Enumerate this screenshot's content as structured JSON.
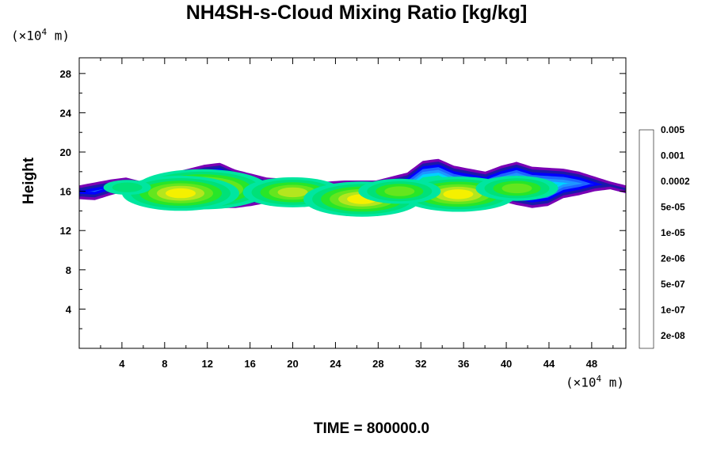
{
  "chart_data": {
    "type": "heatmap",
    "title": "NH4SH-s-Cloud Mixing Ratio [kg/kg]",
    "ylabel": "Height",
    "xlabel": "",
    "y_unit_base": "(×10",
    "y_unit_exp": "4",
    "y_unit_tail": " m)",
    "x_unit_base": "(×10",
    "x_unit_exp": "4",
    "x_unit_tail": " m)",
    "footer": "TIME = 800000.0",
    "xlim": [
      0,
      51.2
    ],
    "ylim": [
      0,
      29.6
    ],
    "x_ticks": [
      4,
      8,
      12,
      16,
      20,
      24,
      28,
      32,
      36,
      40,
      44,
      48
    ],
    "y_ticks": [
      4,
      8,
      12,
      16,
      20,
      24,
      28
    ],
    "colorbar": {
      "levels": [
        "2e-08",
        "1e-07",
        "5e-07",
        "2e-06",
        "1e-05",
        "5e-05",
        "0.0002",
        "0.001",
        "0.005"
      ],
      "colors": [
        "#7a00b4",
        "#1a1aa8",
        "#0000ff",
        "#1e64ff",
        "#1e96ff",
        "#00d2ff",
        "#00e6a0",
        "#00e178",
        "#28e628",
        "#64e61e",
        "#b4e61e",
        "#f5f000",
        "#ffb400",
        "#ff6400",
        "#ff0000",
        "#ff4040",
        "#ff9696"
      ]
    },
    "layer": {
      "bottom": [
        15.2,
        15.1,
        15.6,
        16.0,
        15.9,
        15.2,
        14.9,
        14.7,
        14.4,
        14.3,
        14.3,
        14.5,
        14.8,
        15.1,
        15.0,
        14.6,
        14.5,
        14.4,
        14.5,
        14.6,
        14.9,
        15.0,
        14.6,
        14.5,
        14.7,
        15.0,
        15.1,
        15.0,
        14.6,
        14.3,
        14.5,
        15.3,
        15.6,
        16.0,
        16.2,
        15.8
      ],
      "top": [
        16.6,
        16.9,
        17.2,
        17.4,
        17.0,
        17.6,
        17.9,
        18.3,
        18.7,
        18.9,
        18.2,
        17.8,
        17.4,
        17.3,
        17.1,
        16.9,
        17.0,
        17.1,
        17.1,
        17.1,
        17.5,
        17.9,
        19.1,
        19.3,
        18.6,
        18.3,
        18.0,
        18.6,
        19.0,
        18.5,
        18.4,
        18.3,
        18.0,
        17.5,
        17.0,
        16.6
      ],
      "core": [
        {
          "x": 11.5,
          "y": 16.2,
          "peak": 12
        },
        {
          "x": 9.5,
          "y": 15.8,
          "peak": 11
        },
        {
          "x": 20.0,
          "y": 15.9,
          "peak": 10
        },
        {
          "x": 26.5,
          "y": 15.2,
          "peak": 11
        },
        {
          "x": 35.5,
          "y": 15.7,
          "peak": 11
        },
        {
          "x": 41.0,
          "y": 16.3,
          "peak": 9
        },
        {
          "x": 30.0,
          "y": 16.0,
          "peak": 9
        },
        {
          "x": 4.5,
          "y": 16.4,
          "peak": 7
        }
      ]
    }
  }
}
